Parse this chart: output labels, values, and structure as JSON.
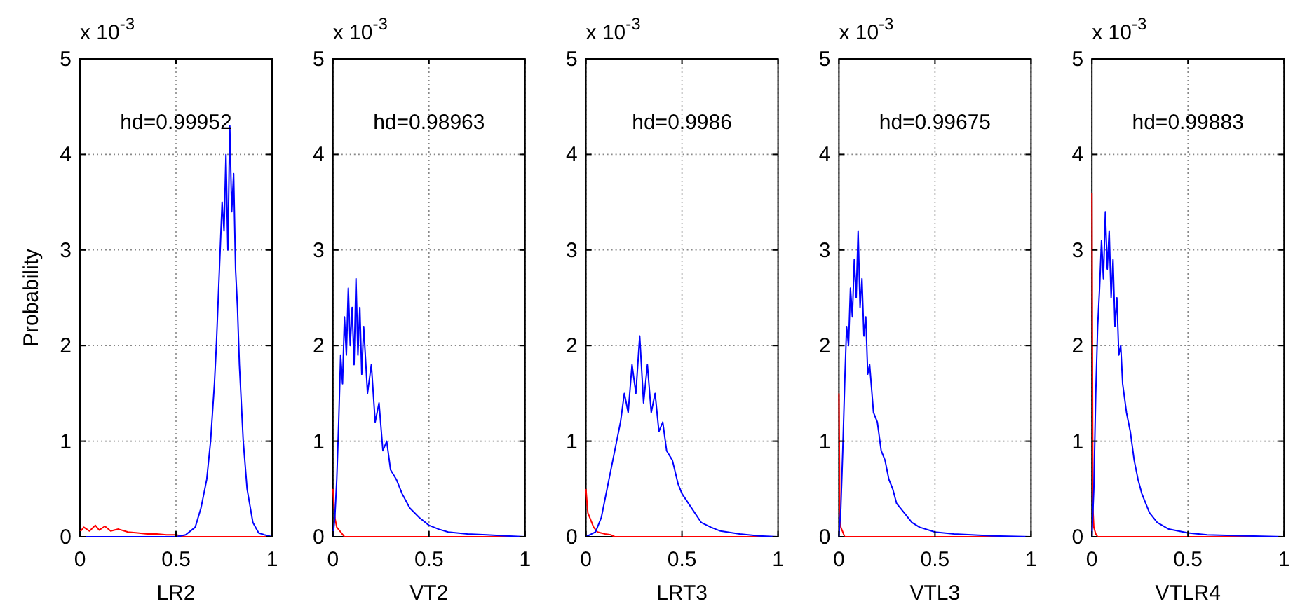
{
  "chart_data": [
    {
      "type": "line",
      "xlabel": "LR2",
      "ylabel": "Probability",
      "xlim": [
        0,
        1
      ],
      "xticks": [
        0,
        0.5,
        1
      ],
      "ylim": [
        0,
        5
      ],
      "yticks": [
        0,
        1,
        2,
        3,
        4,
        5
      ],
      "grid": true,
      "annotations": [
        "x 10$^{-3}$",
        "hd=0.99952"
      ],
      "series": [
        {
          "color": "#ff0000",
          "x": [
            0,
            0.02,
            0.05,
            0.08,
            0.1,
            0.13,
            0.16,
            0.2,
            0.25,
            0.3,
            0.35,
            0.4,
            0.45,
            0.5,
            0.55,
            1
          ],
          "values": [
            0.05,
            0.1,
            0.06,
            0.12,
            0.07,
            0.11,
            0.06,
            0.08,
            0.05,
            0.04,
            0.03,
            0.03,
            0.02,
            0.02,
            0,
            0
          ]
        },
        {
          "color": "#0000ff",
          "x": [
            0,
            0.5,
            0.55,
            0.6,
            0.63,
            0.66,
            0.68,
            0.7,
            0.71,
            0.72,
            0.73,
            0.74,
            0.75,
            0.76,
            0.77,
            0.78,
            0.79,
            0.8,
            0.81,
            0.82,
            0.83,
            0.85,
            0.87,
            0.9,
            0.93,
            0.96,
            1
          ],
          "values": [
            0,
            0,
            0.02,
            0.1,
            0.3,
            0.6,
            1.0,
            1.6,
            2.0,
            2.5,
            3.0,
            3.5,
            3.2,
            4.0,
            3.0,
            4.3,
            3.4,
            3.8,
            2.8,
            2.4,
            1.8,
            1.0,
            0.5,
            0.15,
            0.04,
            0.02,
            0
          ]
        }
      ]
    },
    {
      "type": "line",
      "xlabel": "VT2",
      "xlim": [
        0,
        1
      ],
      "xticks": [
        0,
        0.5,
        1
      ],
      "ylim": [
        0,
        5
      ],
      "yticks": [
        0,
        1,
        2,
        3,
        4,
        5
      ],
      "grid": true,
      "annotations": [
        "x 10$^{-3}$",
        "hd=0.98963"
      ],
      "series": [
        {
          "color": "#ff0000",
          "x": [
            0,
            0.01,
            0.02,
            0.04,
            0.06,
            1
          ],
          "values": [
            0.5,
            0.2,
            0.1,
            0.05,
            0,
            0
          ]
        },
        {
          "color": "#0000ff",
          "x": [
            0,
            0.01,
            0.02,
            0.03,
            0.04,
            0.05,
            0.06,
            0.07,
            0.08,
            0.09,
            0.1,
            0.11,
            0.12,
            0.13,
            0.14,
            0.15,
            0.16,
            0.18,
            0.2,
            0.22,
            0.24,
            0.26,
            0.28,
            0.3,
            0.33,
            0.36,
            0.4,
            0.45,
            0.5,
            0.55,
            0.6,
            0.7,
            0.8,
            0.9,
            1
          ],
          "values": [
            0,
            0.2,
            0.6,
            1.2,
            1.9,
            1.6,
            2.3,
            1.9,
            2.6,
            2.0,
            2.4,
            1.8,
            2.7,
            1.9,
            2.4,
            1.7,
            2.2,
            1.5,
            1.8,
            1.2,
            1.4,
            0.9,
            1.0,
            0.7,
            0.6,
            0.45,
            0.3,
            0.2,
            0.12,
            0.08,
            0.05,
            0.03,
            0.02,
            0.01,
            0
          ]
        }
      ]
    },
    {
      "type": "line",
      "xlabel": "LRT3",
      "xlim": [
        0,
        1
      ],
      "xticks": [
        0,
        0.5,
        1
      ],
      "ylim": [
        0,
        5
      ],
      "yticks": [
        0,
        1,
        2,
        3,
        4,
        5
      ],
      "grid": true,
      "annotations": [
        "x 10$^{-3}$",
        "hd=0.9986"
      ],
      "series": [
        {
          "color": "#ff0000",
          "x": [
            0,
            0.01,
            0.02,
            0.04,
            0.06,
            0.1,
            0.13,
            0.15,
            1
          ],
          "values": [
            0.5,
            0.25,
            0.2,
            0.1,
            0.05,
            0.03,
            0.02,
            0,
            0
          ]
        },
        {
          "color": "#0000ff",
          "x": [
            0,
            0.05,
            0.08,
            0.1,
            0.12,
            0.14,
            0.16,
            0.18,
            0.2,
            0.22,
            0.24,
            0.26,
            0.28,
            0.3,
            0.32,
            0.34,
            0.36,
            0.38,
            0.4,
            0.42,
            0.45,
            0.48,
            0.5,
            0.55,
            0.6,
            0.65,
            0.7,
            0.8,
            0.9,
            1
          ],
          "values": [
            0,
            0.05,
            0.2,
            0.4,
            0.6,
            0.8,
            1.0,
            1.2,
            1.5,
            1.3,
            1.8,
            1.5,
            2.1,
            1.4,
            1.8,
            1.3,
            1.5,
            1.1,
            1.2,
            0.9,
            0.8,
            0.55,
            0.45,
            0.3,
            0.15,
            0.1,
            0.06,
            0.03,
            0.01,
            0
          ]
        }
      ]
    },
    {
      "type": "line",
      "xlabel": "VTL3",
      "xlim": [
        0,
        1
      ],
      "xticks": [
        0,
        0.5,
        1
      ],
      "ylim": [
        0,
        5
      ],
      "yticks": [
        0,
        1,
        2,
        3,
        4,
        5
      ],
      "grid": true,
      "annotations": [
        "x 10$^{-3}$",
        "hd=0.99675"
      ],
      "series": [
        {
          "color": "#ff0000",
          "x": [
            0,
            0.005,
            0.01,
            0.02,
            0.03,
            1
          ],
          "values": [
            1.5,
            0.2,
            0.1,
            0.05,
            0,
            0
          ]
        },
        {
          "color": "#0000ff",
          "x": [
            0,
            0.01,
            0.02,
            0.03,
            0.04,
            0.05,
            0.06,
            0.07,
            0.08,
            0.09,
            0.1,
            0.11,
            0.12,
            0.13,
            0.14,
            0.15,
            0.16,
            0.18,
            0.2,
            0.22,
            0.24,
            0.26,
            0.28,
            0.3,
            0.34,
            0.38,
            0.42,
            0.5,
            0.6,
            0.8,
            1
          ],
          "values": [
            0,
            0.3,
            0.9,
            1.6,
            2.2,
            2.0,
            2.6,
            2.3,
            2.9,
            2.5,
            3.2,
            2.4,
            2.7,
            2.1,
            2.3,
            1.7,
            1.8,
            1.3,
            1.2,
            0.9,
            0.8,
            0.6,
            0.5,
            0.35,
            0.25,
            0.15,
            0.1,
            0.05,
            0.03,
            0.01,
            0
          ]
        }
      ]
    },
    {
      "type": "line",
      "xlabel": "VTLR4",
      "xlim": [
        0,
        1
      ],
      "xticks": [
        0,
        0.5,
        1
      ],
      "ylim": [
        0,
        5
      ],
      "yticks": [
        0,
        1,
        2,
        3,
        4,
        5
      ],
      "grid": true,
      "annotations": [
        "x 10$^{-3}$",
        "hd=0.99883"
      ],
      "series": [
        {
          "color": "#ff0000",
          "x": [
            0,
            0.005,
            0.01,
            0.02,
            0.03,
            1
          ],
          "values": [
            3.6,
            0.3,
            0.1,
            0.03,
            0,
            0
          ]
        },
        {
          "color": "#0000ff",
          "x": [
            0,
            0.01,
            0.02,
            0.03,
            0.04,
            0.05,
            0.06,
            0.07,
            0.08,
            0.09,
            0.1,
            0.11,
            0.12,
            0.13,
            0.14,
            0.15,
            0.16,
            0.18,
            0.2,
            0.22,
            0.24,
            0.26,
            0.28,
            0.3,
            0.34,
            0.4,
            0.5,
            0.6,
            0.8,
            1
          ],
          "values": [
            0,
            0.5,
            1.5,
            2.2,
            2.6,
            3.1,
            2.7,
            3.4,
            2.8,
            3.2,
            2.5,
            2.9,
            2.2,
            2.5,
            1.9,
            2.0,
            1.6,
            1.3,
            1.1,
            0.8,
            0.6,
            0.45,
            0.35,
            0.25,
            0.15,
            0.08,
            0.04,
            0.02,
            0.01,
            0
          ]
        }
      ]
    }
  ]
}
